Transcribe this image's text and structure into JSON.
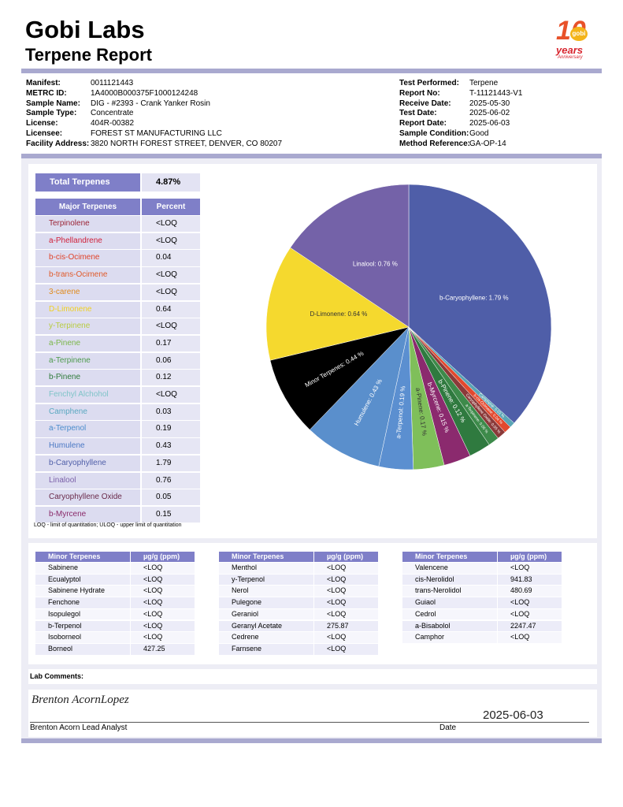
{
  "header": {
    "title": "Gobi Labs",
    "subtitle": "Terpene Report",
    "logo": {
      "number": "10",
      "brand": "gobi",
      "years": "years",
      "anniversary": "Anniversary"
    }
  },
  "info_left": [
    [
      "Manifest:",
      "0011121443"
    ],
    [
      "METRC ID:",
      "1A4000B000375F1000124248"
    ],
    [
      "Sample Name:",
      "DIG - #2393 - Crank Yanker Rosin"
    ],
    [
      "Sample Type:",
      "Concentrate"
    ],
    [
      "License:",
      "404R-00382"
    ],
    [
      "Licensee:",
      "FOREST ST MANUFACTURING LLC"
    ],
    [
      "Facility Address:",
      "3820 NORTH FOREST STREET, DENVER, CO 80207"
    ]
  ],
  "info_right": [
    [
      "Test Performed:",
      "Terpene"
    ],
    [
      "Report No:",
      "T-11121443-V1"
    ],
    [
      "Receive Date:",
      "2025-05-30"
    ],
    [
      "Test Date:",
      "2025-06-02"
    ],
    [
      "Report Date:",
      "2025-06-03"
    ],
    [
      "Sample Condition:",
      "Good"
    ],
    [
      "Method Reference:",
      "GA-OP-14"
    ]
  ],
  "total": {
    "label": "Total Terpenes",
    "value": "4.87%"
  },
  "major_table": {
    "columns": [
      "Major Terpenes",
      "Percent"
    ],
    "rows": [
      {
        "name": "Terpinolene",
        "value": "<LOQ",
        "color": "#9b2335"
      },
      {
        "name": "a-Phellandrene",
        "value": "<LOQ",
        "color": "#d0203a"
      },
      {
        "name": "b-cis-Ocimene",
        "value": "0.04",
        "color": "#e0432a"
      },
      {
        "name": "b-trans-Ocimene",
        "value": "<LOQ",
        "color": "#e05a2a"
      },
      {
        "name": "3-carene",
        "value": "<LOQ",
        "color": "#e08a1a"
      },
      {
        "name": "D-Limonene",
        "value": "0.64",
        "color": "#f0d020"
      },
      {
        "name": "y-Terpinene",
        "value": "<LOQ",
        "color": "#b8cc40"
      },
      {
        "name": "a-Pinene",
        "value": "0.17",
        "color": "#7ab648"
      },
      {
        "name": "a-Terpinene",
        "value": "0.06",
        "color": "#4d9a4d"
      },
      {
        "name": "b-Pinene",
        "value": "0.12",
        "color": "#2e7a3a"
      },
      {
        "name": "Fenchyl Alchohol",
        "value": "<LOQ",
        "color": "#7fc4c8"
      },
      {
        "name": "Camphene",
        "value": "0.03",
        "color": "#5aa8c0"
      },
      {
        "name": "a-Terpenol",
        "value": "0.19",
        "color": "#4a8ccc"
      },
      {
        "name": "Humulene",
        "value": "0.43",
        "color": "#4a78c4"
      },
      {
        "name": "b-Caryophyllene",
        "value": "1.79",
        "color": "#4f5ea8"
      },
      {
        "name": "Linalool",
        "value": "0.76",
        "color": "#7a5fa8"
      },
      {
        "name": "Caryophyllene Oxide",
        "value": "0.05",
        "color": "#6a2a4a"
      },
      {
        "name": "b-Myrcene",
        "value": "0.15",
        "color": "#8a2a6a"
      }
    ]
  },
  "note": "LOQ - limit of quantitation; ULOQ - upper limit of quantitation",
  "chart_data": {
    "type": "pie",
    "categories": [
      "b-Caryophyllene",
      "Camphene",
      "b-cis-Ocimene",
      "Caryophyllene Oxide",
      "a-Terpinene",
      "b-Pinene",
      "b-Myrcene",
      "a-Pinene",
      "a-Terpenol",
      "Humulene",
      "Minor Terpenes",
      "D-Limonene",
      "Linalool"
    ],
    "values": [
      1.79,
      0.03,
      0.04,
      0.05,
      0.06,
      0.12,
      0.15,
      0.17,
      0.19,
      0.43,
      0.44,
      0.64,
      0.76
    ],
    "value_labels": [
      "b-Caryophyllene: 1.79 %",
      "Camphene: 0.03 %",
      "b-cis-Ocimene: 0.04 %",
      "Caryophyllene Oxide: 0.05 %",
      "a-Terpinene: 0.06 %",
      "b-Pinene: 0.12 %",
      "b-Myrcene: 0.15 %",
      "a-Pinene: 0.17 %",
      "a-Terpenol: 0.19 %",
      "Humulene: 0.43 %",
      "Minor Terpenes: 0.44 %",
      "D-Limonene: 0.64 %",
      "Linalool: 0.76 %"
    ],
    "colors": [
      "#4f5ea8",
      "#5aa5b5",
      "#e2492f",
      "#8b3a3a",
      "#3d8a4a",
      "#2f7a3f",
      "#8b2a6e",
      "#7fbf5a",
      "#5b8fd0",
      "#5a8fcc",
      "#000000",
      "#f5d92e",
      "#7462a8"
    ]
  },
  "minor_tables": [
    {
      "columns": [
        "Minor Terpenes",
        "µg/g (ppm)"
      ],
      "rows": [
        [
          "Sabinene",
          "<LOQ"
        ],
        [
          "Ecualyptol",
          "<LOQ"
        ],
        [
          "Sabinene Hydrate",
          "<LOQ"
        ],
        [
          "Fenchone",
          "<LOQ"
        ],
        [
          "Isopulegol",
          "<LOQ"
        ],
        [
          "b-Terpenol",
          "<LOQ"
        ],
        [
          "Isoborneol",
          "<LOQ"
        ],
        [
          "Borneol",
          "427.25"
        ]
      ]
    },
    {
      "columns": [
        "Minor Terpenes",
        "µg/g (ppm)"
      ],
      "rows": [
        [
          "Menthol",
          "<LOQ"
        ],
        [
          "y-Terpenol",
          "<LOQ"
        ],
        [
          "Nerol",
          "<LOQ"
        ],
        [
          "Pulegone",
          "<LOQ"
        ],
        [
          "Geraniol",
          "<LOQ"
        ],
        [
          "Geranyl Acetate",
          "275.87"
        ],
        [
          "Cedrene",
          "<LOQ"
        ],
        [
          "Farnsene",
          "<LOQ"
        ]
      ]
    },
    {
      "columns": [
        "Minor Terpenes",
        "µg/g (ppm)"
      ],
      "rows": [
        [
          "Valencene",
          "<LOQ"
        ],
        [
          "cis-Nerolidol",
          "941.83"
        ],
        [
          "trans-Nerolidol",
          "480.69"
        ],
        [
          "Guiaol",
          "<LOQ"
        ],
        [
          "Cedrol",
          "<LOQ"
        ],
        [
          "a-Bisabolol",
          "2247.47"
        ],
        [
          "Camphor",
          "<LOQ"
        ]
      ]
    }
  ],
  "lab_comments": "Lab Comments:",
  "signature": {
    "handwriting": "Brenton AcornLopez",
    "date": "2025-06-03",
    "signer": "Brenton Acorn Lead Analyst",
    "date_label": "Date"
  }
}
